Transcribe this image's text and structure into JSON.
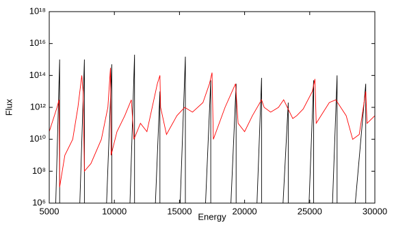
{
  "chart_data": {
    "type": "line",
    "x_label": "Energy",
    "y_label": "Flux",
    "log_y": true,
    "xlim": [
      5000,
      30000
    ],
    "xticks": [
      5000,
      10000,
      15000,
      20000,
      25000,
      30000
    ],
    "ylim": [
      1000000.0,
      1e+18
    ],
    "yticks": [
      {
        "value": 1000000.0,
        "label": "10⁶"
      },
      {
        "value": 100000000.0,
        "label": "10⁸"
      },
      {
        "value": 10000000000.0,
        "label": "10¹⁰"
      },
      {
        "value": 1000000000000.0,
        "label": "10¹²"
      },
      {
        "value": 100000000000000.0,
        "label": "10¹⁴"
      },
      {
        "value": 1e+16,
        "label": "10¹⁶"
      },
      {
        "value": 1e+18,
        "label": "10¹⁸"
      }
    ],
    "series": [
      {
        "color": "#000000",
        "x": [
          5500,
          5800,
          5800,
          7350,
          7700,
          7700,
          9400,
          9800,
          9800,
          11200,
          11550,
          11550,
          13150,
          13500,
          13500,
          15050,
          15450,
          15450,
          17000,
          17400,
          17400,
          18950,
          19350,
          19350,
          20950,
          21300,
          21300,
          22950,
          23350,
          23350,
          24950,
          25300,
          25300,
          26750,
          27100,
          27100,
          28500,
          29300,
          29300
        ],
        "values": [
          1000000.0,
          1000000000000000.0,
          1000000.0,
          1000000.0,
          1000000000000000.0,
          1000000.0,
          1000000.0,
          500000000000000.0,
          1000000.0,
          1000000.0,
          2000000000000000.0,
          1000000.0,
          1000000.0,
          10000000000000.0,
          1000000.0,
          1000000.0,
          1500000000000000.0,
          1000000.0,
          1000000.0,
          50000000000000.0,
          1000000.0,
          1000000.0,
          30000000000000.0,
          1000000.0,
          1000000.0,
          70000000000000.0,
          1000000.0,
          1000000.0,
          2000000000000.0,
          1000000.0,
          1000000.0,
          50000000000000.0,
          1000000.0,
          1000000.0,
          100000000000000.0,
          1000000.0,
          1000000.0,
          30000000000000.0,
          1000000.0
        ]
      },
      {
        "color": "#ff0000",
        "x": [
          5000,
          5600,
          5750,
          5800,
          6200,
          6800,
          7200,
          7500,
          7600,
          7700,
          8200,
          9000,
          9500,
          9700,
          9750,
          10200,
          10800,
          11300,
          11500,
          12000,
          12500,
          13300,
          13500,
          13550,
          14000,
          14800,
          15400,
          16000,
          16800,
          17300,
          17500,
          17600,
          18500,
          19300,
          19500,
          20000,
          20600,
          21300,
          21500,
          22000,
          22600,
          23000,
          23700,
          24000,
          24500,
          25200,
          25400,
          25500,
          26500,
          27000,
          27800,
          28300,
          28800,
          29300,
          29400,
          30000
        ],
        "values": [
          30000000000.0,
          1000000000000.0,
          3000000000000.0,
          10000000.0,
          1000000000.0,
          10000000000.0,
          1000000000000.0,
          100000000000000.0,
          10000000000000.0,
          100000000.0,
          300000000.0,
          10000000000.0,
          1000000000000.0,
          300000000000000.0,
          1000000000.0,
          30000000000.0,
          300000000000.0,
          3000000000000.0,
          10000000000.0,
          100000000000.0,
          30000000000.0,
          30000000000000.0,
          100000000000000.0,
          1000000000000.0,
          20000000000.0,
          300000000000.0,
          1000000000000.0,
          500000000000.0,
          2000000000000.0,
          30000000000000.0,
          150000000000000.0,
          10000000000.0,
          1000000000000.0,
          30000000000000.0,
          100000000000.0,
          30000000000.0,
          300000000000.0,
          3000000000000.0,
          1000000000000.0,
          500000000000.0,
          1000000000000.0,
          3000000000000.0,
          200000000000.0,
          300000000000.0,
          800000000000.0,
          10000000000000.0,
          60000000000000.0,
          100000000000.0,
          2000000000000.0,
          3000000000000.0,
          300000000000.0,
          10000000000.0,
          20000000000.0,
          10000000000000.0,
          100000000000.0,
          300000000000.0
        ]
      }
    ]
  }
}
